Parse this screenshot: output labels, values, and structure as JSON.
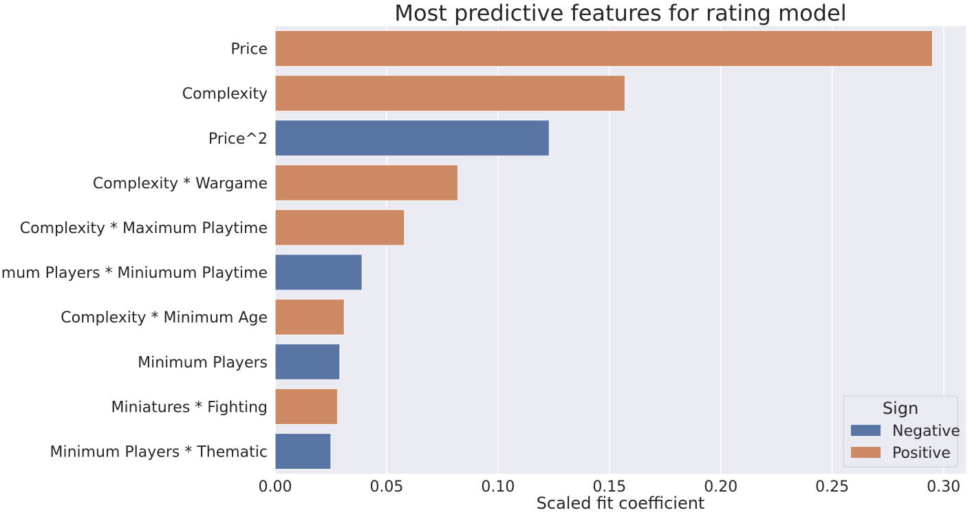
{
  "chart_data": {
    "type": "bar",
    "orientation": "horizontal",
    "title": "Most predictive features for rating model",
    "xlabel": "Scaled fit coefficient",
    "ylabel": "",
    "xlim": [
      0,
      0.31
    ],
    "xticks": [
      "0.00",
      "0.05",
      "0.10",
      "0.15",
      "0.20",
      "0.25",
      "0.30"
    ],
    "xtick_values": [
      0.0,
      0.05,
      0.1,
      0.15,
      0.2,
      0.25,
      0.3
    ],
    "grid": true,
    "background": "#eaeaf2",
    "categories": [
      "Price",
      "Complexity",
      "Price^2",
      "Complexity * Wargame",
      "Complexity * Maximum Playtime",
      "Minimum Players * Miniumum Playtime",
      "Complexity * Minimum Age",
      "Minimum Players",
      "Miniatures * Fighting",
      "Minimum Players * Thematic"
    ],
    "values": [
      0.295,
      0.157,
      0.123,
      0.082,
      0.058,
      0.039,
      0.031,
      0.029,
      0.028,
      0.025
    ],
    "signs": [
      "Positive",
      "Positive",
      "Negative",
      "Positive",
      "Positive",
      "Negative",
      "Positive",
      "Negative",
      "Positive",
      "Negative"
    ],
    "legend": {
      "title": "Sign",
      "placement": "lower-right",
      "entries": [
        {
          "label": "Negative",
          "color": "#5875a4"
        },
        {
          "label": "Positive",
          "color": "#cc8963"
        }
      ]
    }
  }
}
